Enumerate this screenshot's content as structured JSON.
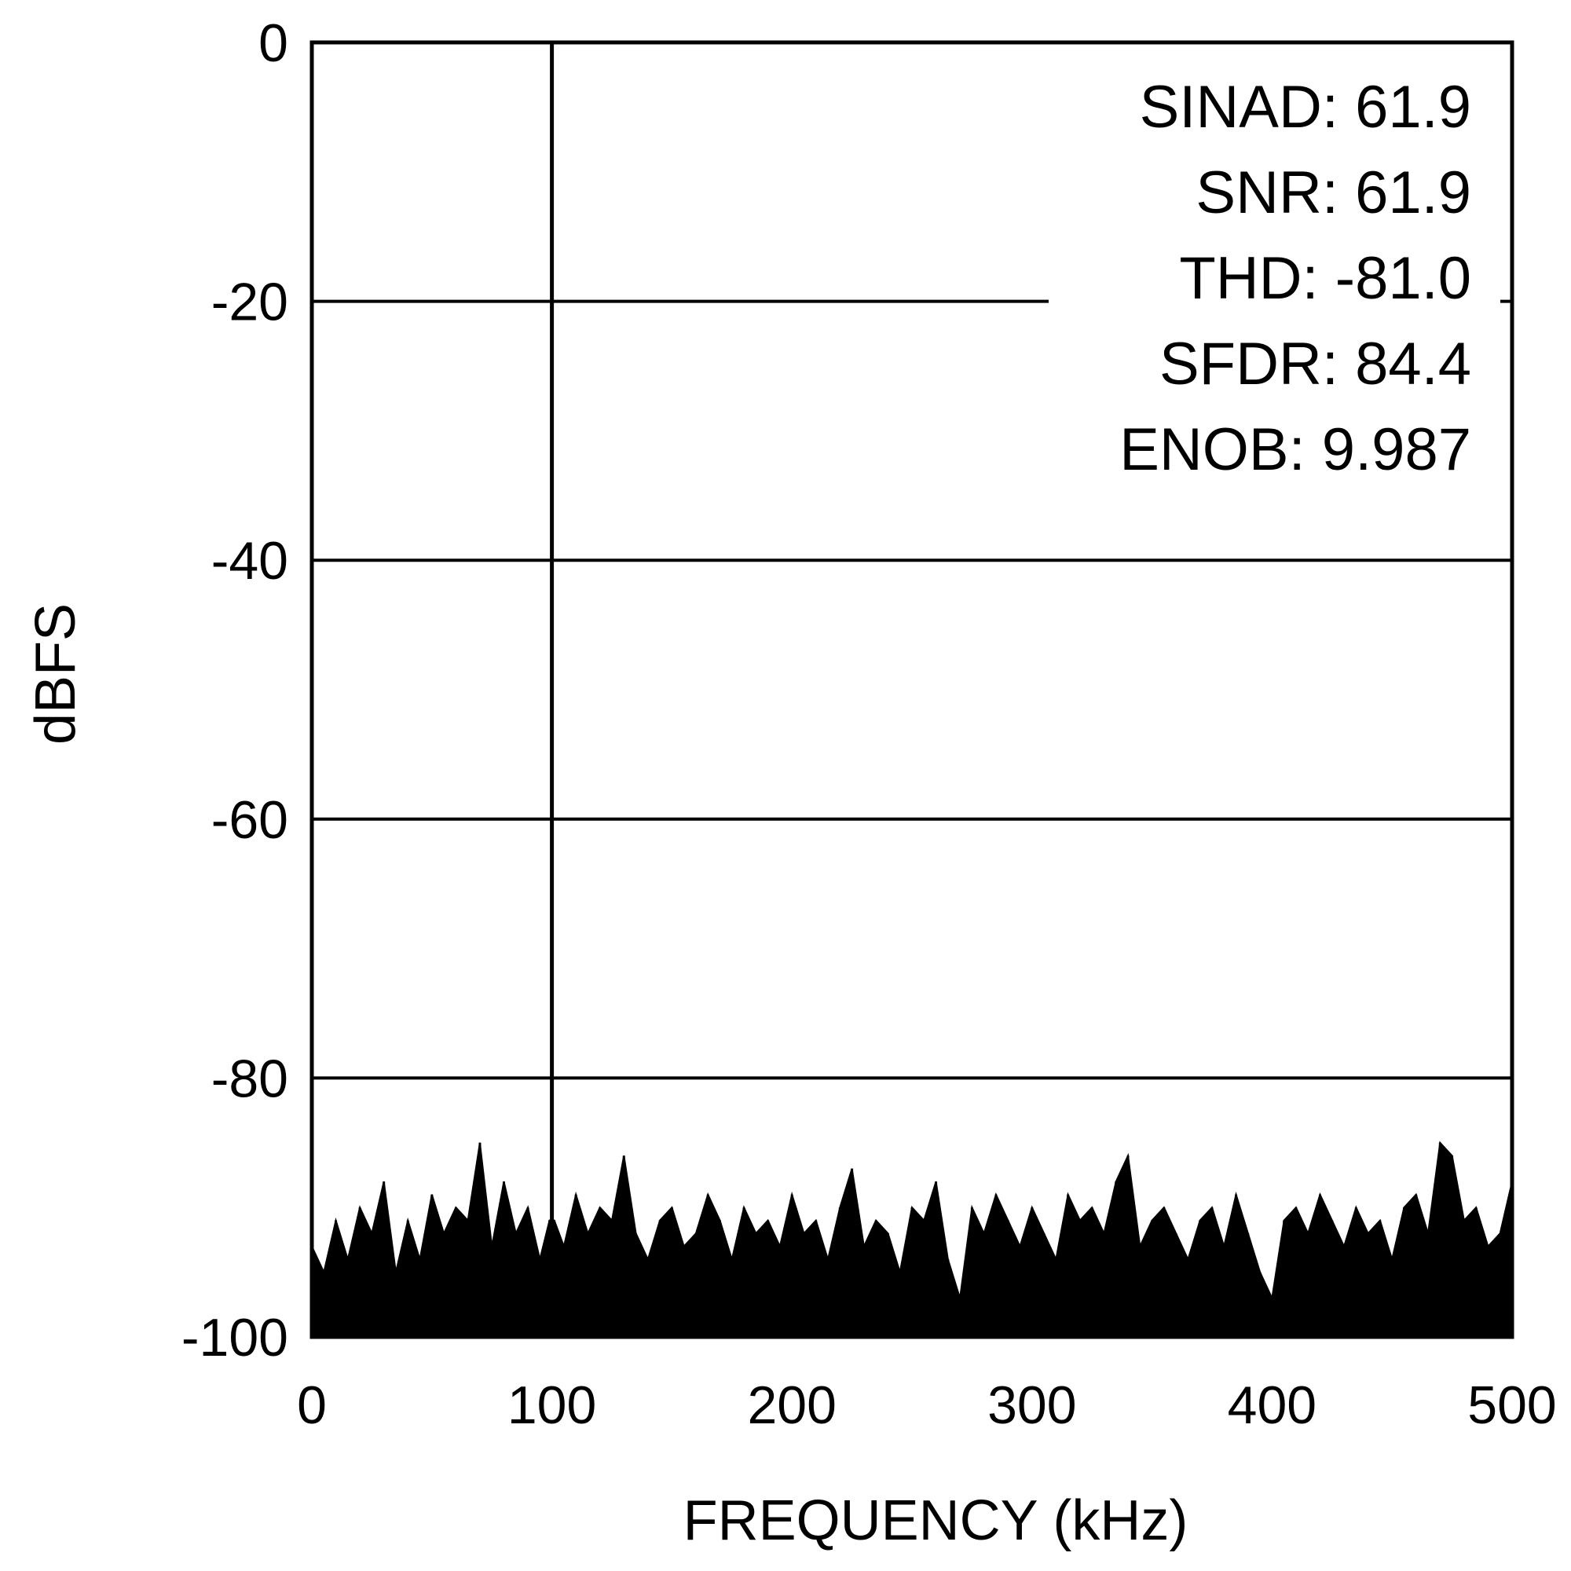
{
  "chart_data": {
    "type": "line",
    "title": "",
    "xlabel": "FREQUENCY (kHz)",
    "ylabel": "dBFS",
    "xlim": [
      0,
      500
    ],
    "ylim": [
      -100,
      0
    ],
    "xticks": [
      "0",
      "100",
      "200",
      "300",
      "400",
      "500"
    ],
    "yticks": [
      "0",
      "-20",
      "-40",
      "-60",
      "-80",
      "-100"
    ],
    "grid": "horizontal",
    "legend": "none",
    "color": "#000000",
    "series": [
      {
        "x": [
          0,
          5,
          10,
          15,
          20,
          25,
          30,
          35,
          40,
          45,
          50,
          55,
          60,
          65,
          70,
          75,
          80,
          85,
          90,
          95,
          99,
          100,
          101,
          105,
          110,
          115,
          120,
          125,
          130,
          135,
          140,
          145,
          150,
          155,
          160,
          165,
          170,
          175,
          180,
          185,
          190,
          195,
          200,
          205,
          210,
          215,
          220,
          225,
          230,
          235,
          240,
          245,
          250,
          255,
          260,
          265,
          270,
          275,
          280,
          285,
          290,
          295,
          300,
          305,
          310,
          315,
          320,
          325,
          330,
          335,
          340,
          345,
          350,
          355,
          360,
          365,
          370,
          375,
          380,
          385,
          390,
          395,
          400,
          405,
          410,
          415,
          420,
          425,
          430,
          435,
          440,
          445,
          450,
          455,
          460,
          465,
          470,
          475,
          480,
          485,
          490,
          495,
          500
        ],
        "y": [
          -93,
          -95,
          -91,
          -94,
          -90,
          -92,
          -88,
          -95,
          -91,
          -94,
          -89,
          -92,
          -90,
          -91,
          -85,
          -93,
          -88,
          -92,
          -90,
          -94,
          -91,
          0,
          -91,
          -93,
          -89,
          -92,
          -90,
          -91,
          -86,
          -92,
          -94,
          -91,
          -90,
          -93,
          -92,
          -89,
          -91,
          -94,
          -90,
          -92,
          -91,
          -93,
          -89,
          -92,
          -91,
          -94,
          -90,
          -87,
          -93,
          -91,
          -92,
          -95,
          -90,
          -91,
          -88,
          -94,
          -97,
          -90,
          -92,
          -89,
          -91,
          -93,
          -90,
          -92,
          -94,
          -89,
          -91,
          -90,
          -92,
          -88,
          -86,
          -93,
          -91,
          -90,
          -92,
          -94,
          -91,
          -90,
          -93,
          -89,
          -92,
          -95,
          -97,
          -91,
          -90,
          -92,
          -89,
          -91,
          -93,
          -90,
          -92,
          -91,
          -94,
          -90,
          -89,
          -92,
          -85,
          -86,
          -91,
          -90,
          -93,
          -92,
          -88
        ]
      }
    ],
    "annotations": [
      "SINAD: 61.9",
      "SNR: 61.9",
      "THD: -81.0",
      "SFDR: 84.4",
      "ENOB: 9.987"
    ]
  }
}
